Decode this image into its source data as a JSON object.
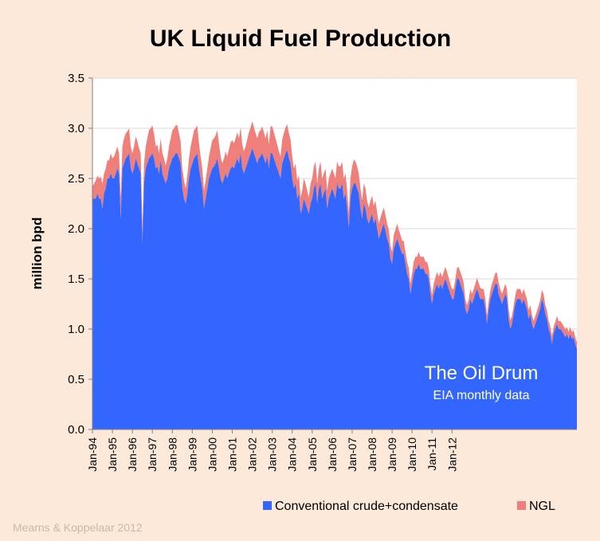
{
  "chart_data": {
    "type": "area",
    "stacked": true,
    "title": "UK Liquid Fuel Production",
    "ylabel": "million bpd",
    "xlabel": "",
    "ylim": [
      0,
      3.5
    ],
    "yticks": [
      "0.0",
      "0.5",
      "1.0",
      "1.5",
      "2.0",
      "2.5",
      "3.0",
      "3.5"
    ],
    "grid": true,
    "legend_position": "bottom-right",
    "x_start": "Jan-94",
    "x_ticks": [
      "Jan-94",
      "Jan-95",
      "Jan-96",
      "Jan-97",
      "Jan-98",
      "Jan-99",
      "Jan-00",
      "Jan-01",
      "Jan-02",
      "Jan-03",
      "Jan-04",
      "Jan-05",
      "Jan-06",
      "Jan-07",
      "Jan-08",
      "Jan-09",
      "Jan-10",
      "Jan-11",
      "Jan-12"
    ],
    "series": [
      {
        "name": "Conventional crude+condensate",
        "color": "#3366ff",
        "values": [
          2.3,
          2.3,
          2.3,
          2.35,
          2.3,
          2.3,
          2.2,
          2.35,
          2.4,
          2.5,
          2.5,
          2.55,
          2.5,
          2.5,
          2.55,
          2.6,
          2.55,
          2.1,
          2.6,
          2.65,
          2.7,
          2.72,
          2.75,
          2.6,
          2.55,
          2.6,
          2.7,
          2.65,
          2.6,
          2.55,
          1.85,
          2.45,
          2.6,
          2.65,
          2.7,
          2.72,
          2.75,
          2.7,
          2.6,
          2.62,
          2.55,
          2.68,
          2.55,
          2.5,
          2.45,
          2.5,
          2.6,
          2.65,
          2.7,
          2.72,
          2.75,
          2.75,
          2.7,
          2.65,
          2.4,
          2.3,
          2.25,
          2.35,
          2.5,
          2.6,
          2.65,
          2.7,
          2.72,
          2.75,
          2.6,
          2.5,
          2.4,
          2.2,
          2.3,
          2.4,
          2.5,
          2.55,
          2.6,
          2.62,
          2.65,
          2.7,
          2.6,
          2.5,
          2.45,
          2.5,
          2.55,
          2.5,
          2.55,
          2.6,
          2.62,
          2.6,
          2.65,
          2.7,
          2.65,
          2.75,
          2.6,
          2.55,
          2.6,
          2.65,
          2.7,
          2.75,
          2.8,
          2.75,
          2.7,
          2.65,
          2.7,
          2.72,
          2.75,
          2.7,
          2.65,
          2.72,
          2.6,
          2.75,
          2.75,
          2.7,
          2.65,
          2.6,
          2.55,
          2.5,
          2.65,
          2.7,
          2.75,
          2.78,
          2.7,
          2.65,
          2.5,
          2.4,
          2.45,
          2.3,
          2.35,
          2.15,
          2.2,
          2.3,
          2.25,
          2.2,
          2.15,
          2.25,
          2.3,
          2.4,
          2.45,
          2.25,
          2.4,
          2.45,
          2.3,
          2.35,
          2.4,
          2.2,
          2.3,
          2.35,
          2.4,
          2.35,
          2.3,
          2.45,
          2.4,
          2.4,
          2.45,
          2.3,
          2.35,
          2.2,
          2.0,
          2.3,
          2.4,
          2.45,
          2.45,
          2.4,
          2.35,
          2.2,
          2.1,
          2.25,
          2.2,
          2.1,
          2.05,
          2.1,
          2.15,
          2.05,
          2.1,
          2.0,
          1.9,
          1.95,
          2.0,
          2.05,
          1.98,
          1.9,
          1.85,
          1.7,
          1.65,
          1.8,
          1.85,
          1.9,
          1.85,
          1.8,
          1.75,
          1.75,
          1.65,
          1.55,
          1.5,
          1.35,
          1.45,
          1.55,
          1.6,
          1.6,
          1.65,
          1.6,
          1.6,
          1.6,
          1.55,
          1.55,
          1.5,
          1.35,
          1.25,
          1.35,
          1.4,
          1.45,
          1.4,
          1.45,
          1.4,
          1.45,
          1.5,
          1.45,
          1.4,
          1.35,
          1.3,
          1.3,
          1.4,
          1.5,
          1.5,
          1.45,
          1.4,
          1.35,
          1.2,
          1.15,
          1.2,
          1.3,
          1.25,
          1.3,
          1.35,
          1.4,
          1.35,
          1.3,
          1.3,
          1.3,
          1.2,
          1.05,
          1.2,
          1.3,
          1.35,
          1.4,
          1.45,
          1.45,
          1.35,
          1.3,
          1.25,
          1.3,
          1.35,
          1.3,
          1.1,
          1.0,
          1.05,
          1.15,
          1.25,
          1.3,
          1.3,
          1.3,
          1.25,
          1.3,
          1.25,
          1.2,
          1.1,
          1.15,
          1.05,
          1.0,
          1.05,
          1.1,
          1.15,
          1.2,
          1.3,
          1.25,
          1.15,
          1.1,
          1.0,
          0.95,
          0.85,
          0.95,
          1.0,
          1.05,
          1.0,
          1.0,
          0.98,
          0.95,
          0.92,
          0.95,
          0.9,
          0.95,
          0.9,
          0.92,
          0.85,
          0.8
        ]
      },
      {
        "name": "NGL",
        "color": "#ef7f7b",
        "values": [
          0.12,
          0.15,
          0.18,
          0.18,
          0.2,
          0.22,
          0.25,
          0.2,
          0.2,
          0.18,
          0.18,
          0.2,
          0.2,
          0.22,
          0.22,
          0.22,
          0.2,
          0.2,
          0.22,
          0.25,
          0.25,
          0.25,
          0.25,
          0.22,
          0.2,
          0.22,
          0.22,
          0.22,
          0.2,
          0.2,
          0.15,
          0.2,
          0.22,
          0.25,
          0.28,
          0.28,
          0.28,
          0.25,
          0.22,
          0.22,
          0.2,
          0.22,
          0.2,
          0.2,
          0.18,
          0.2,
          0.22,
          0.25,
          0.28,
          0.28,
          0.28,
          0.28,
          0.25,
          0.22,
          0.2,
          0.18,
          0.15,
          0.18,
          0.2,
          0.22,
          0.25,
          0.28,
          0.28,
          0.28,
          0.25,
          0.22,
          0.2,
          0.18,
          0.18,
          0.2,
          0.22,
          0.25,
          0.28,
          0.28,
          0.28,
          0.28,
          0.25,
          0.22,
          0.2,
          0.2,
          0.22,
          0.22,
          0.24,
          0.26,
          0.26,
          0.25,
          0.25,
          0.26,
          0.25,
          0.26,
          0.24,
          0.22,
          0.22,
          0.24,
          0.26,
          0.26,
          0.27,
          0.26,
          0.25,
          0.25,
          0.26,
          0.26,
          0.27,
          0.26,
          0.25,
          0.26,
          0.24,
          0.27,
          0.27,
          0.26,
          0.25,
          0.24,
          0.22,
          0.22,
          0.24,
          0.25,
          0.26,
          0.26,
          0.25,
          0.24,
          0.22,
          0.2,
          0.2,
          0.18,
          0.18,
          0.16,
          0.18,
          0.2,
          0.2,
          0.18,
          0.16,
          0.2,
          0.2,
          0.22,
          0.22,
          0.2,
          0.2,
          0.22,
          0.2,
          0.2,
          0.2,
          0.18,
          0.2,
          0.2,
          0.2,
          0.2,
          0.2,
          0.22,
          0.22,
          0.22,
          0.22,
          0.2,
          0.2,
          0.18,
          0.16,
          0.2,
          0.22,
          0.24,
          0.22,
          0.22,
          0.2,
          0.2,
          0.18,
          0.2,
          0.2,
          0.18,
          0.16,
          0.18,
          0.18,
          0.18,
          0.18,
          0.16,
          0.15,
          0.16,
          0.16,
          0.16,
          0.16,
          0.15,
          0.14,
          0.13,
          0.12,
          0.14,
          0.14,
          0.15,
          0.14,
          0.14,
          0.13,
          0.13,
          0.12,
          0.12,
          0.11,
          0.1,
          0.11,
          0.12,
          0.12,
          0.12,
          0.12,
          0.12,
          0.12,
          0.12,
          0.12,
          0.12,
          0.11,
          0.1,
          0.09,
          0.1,
          0.11,
          0.12,
          0.12,
          0.12,
          0.12,
          0.12,
          0.12,
          0.12,
          0.11,
          0.1,
          0.1,
          0.1,
          0.1,
          0.11,
          0.12,
          0.12,
          0.12,
          0.11,
          0.1,
          0.09,
          0.09,
          0.1,
          0.1,
          0.1,
          0.1,
          0.11,
          0.11,
          0.11,
          0.1,
          0.1,
          0.1,
          0.09,
          0.08,
          0.09,
          0.1,
          0.1,
          0.11,
          0.11,
          0.11,
          0.1,
          0.1,
          0.1,
          0.1,
          0.1,
          0.1,
          0.09,
          0.08,
          0.08,
          0.09,
          0.1,
          0.1,
          0.1,
          0.1,
          0.1,
          0.1,
          0.1,
          0.09,
          0.09,
          0.09,
          0.08,
          0.08,
          0.08,
          0.08,
          0.09,
          0.09,
          0.1,
          0.09,
          0.09,
          0.08,
          0.08,
          0.08,
          0.07,
          0.07,
          0.08,
          0.08,
          0.08,
          0.08,
          0.08,
          0.08,
          0.07,
          0.07,
          0.07,
          0.07,
          0.07,
          0.07,
          0.07,
          0.07
        ]
      }
    ]
  },
  "watermark": {
    "main": "The Oil Drum",
    "sub": "EIA monthly data"
  },
  "credit": "Mearns & Koppelaar 2012",
  "colors": {
    "background": "#fde9d9",
    "plot_background": "#ffffff",
    "grid": "#d9d9d9",
    "crude": "#3366ff",
    "ngl": "#ef7f7b"
  }
}
